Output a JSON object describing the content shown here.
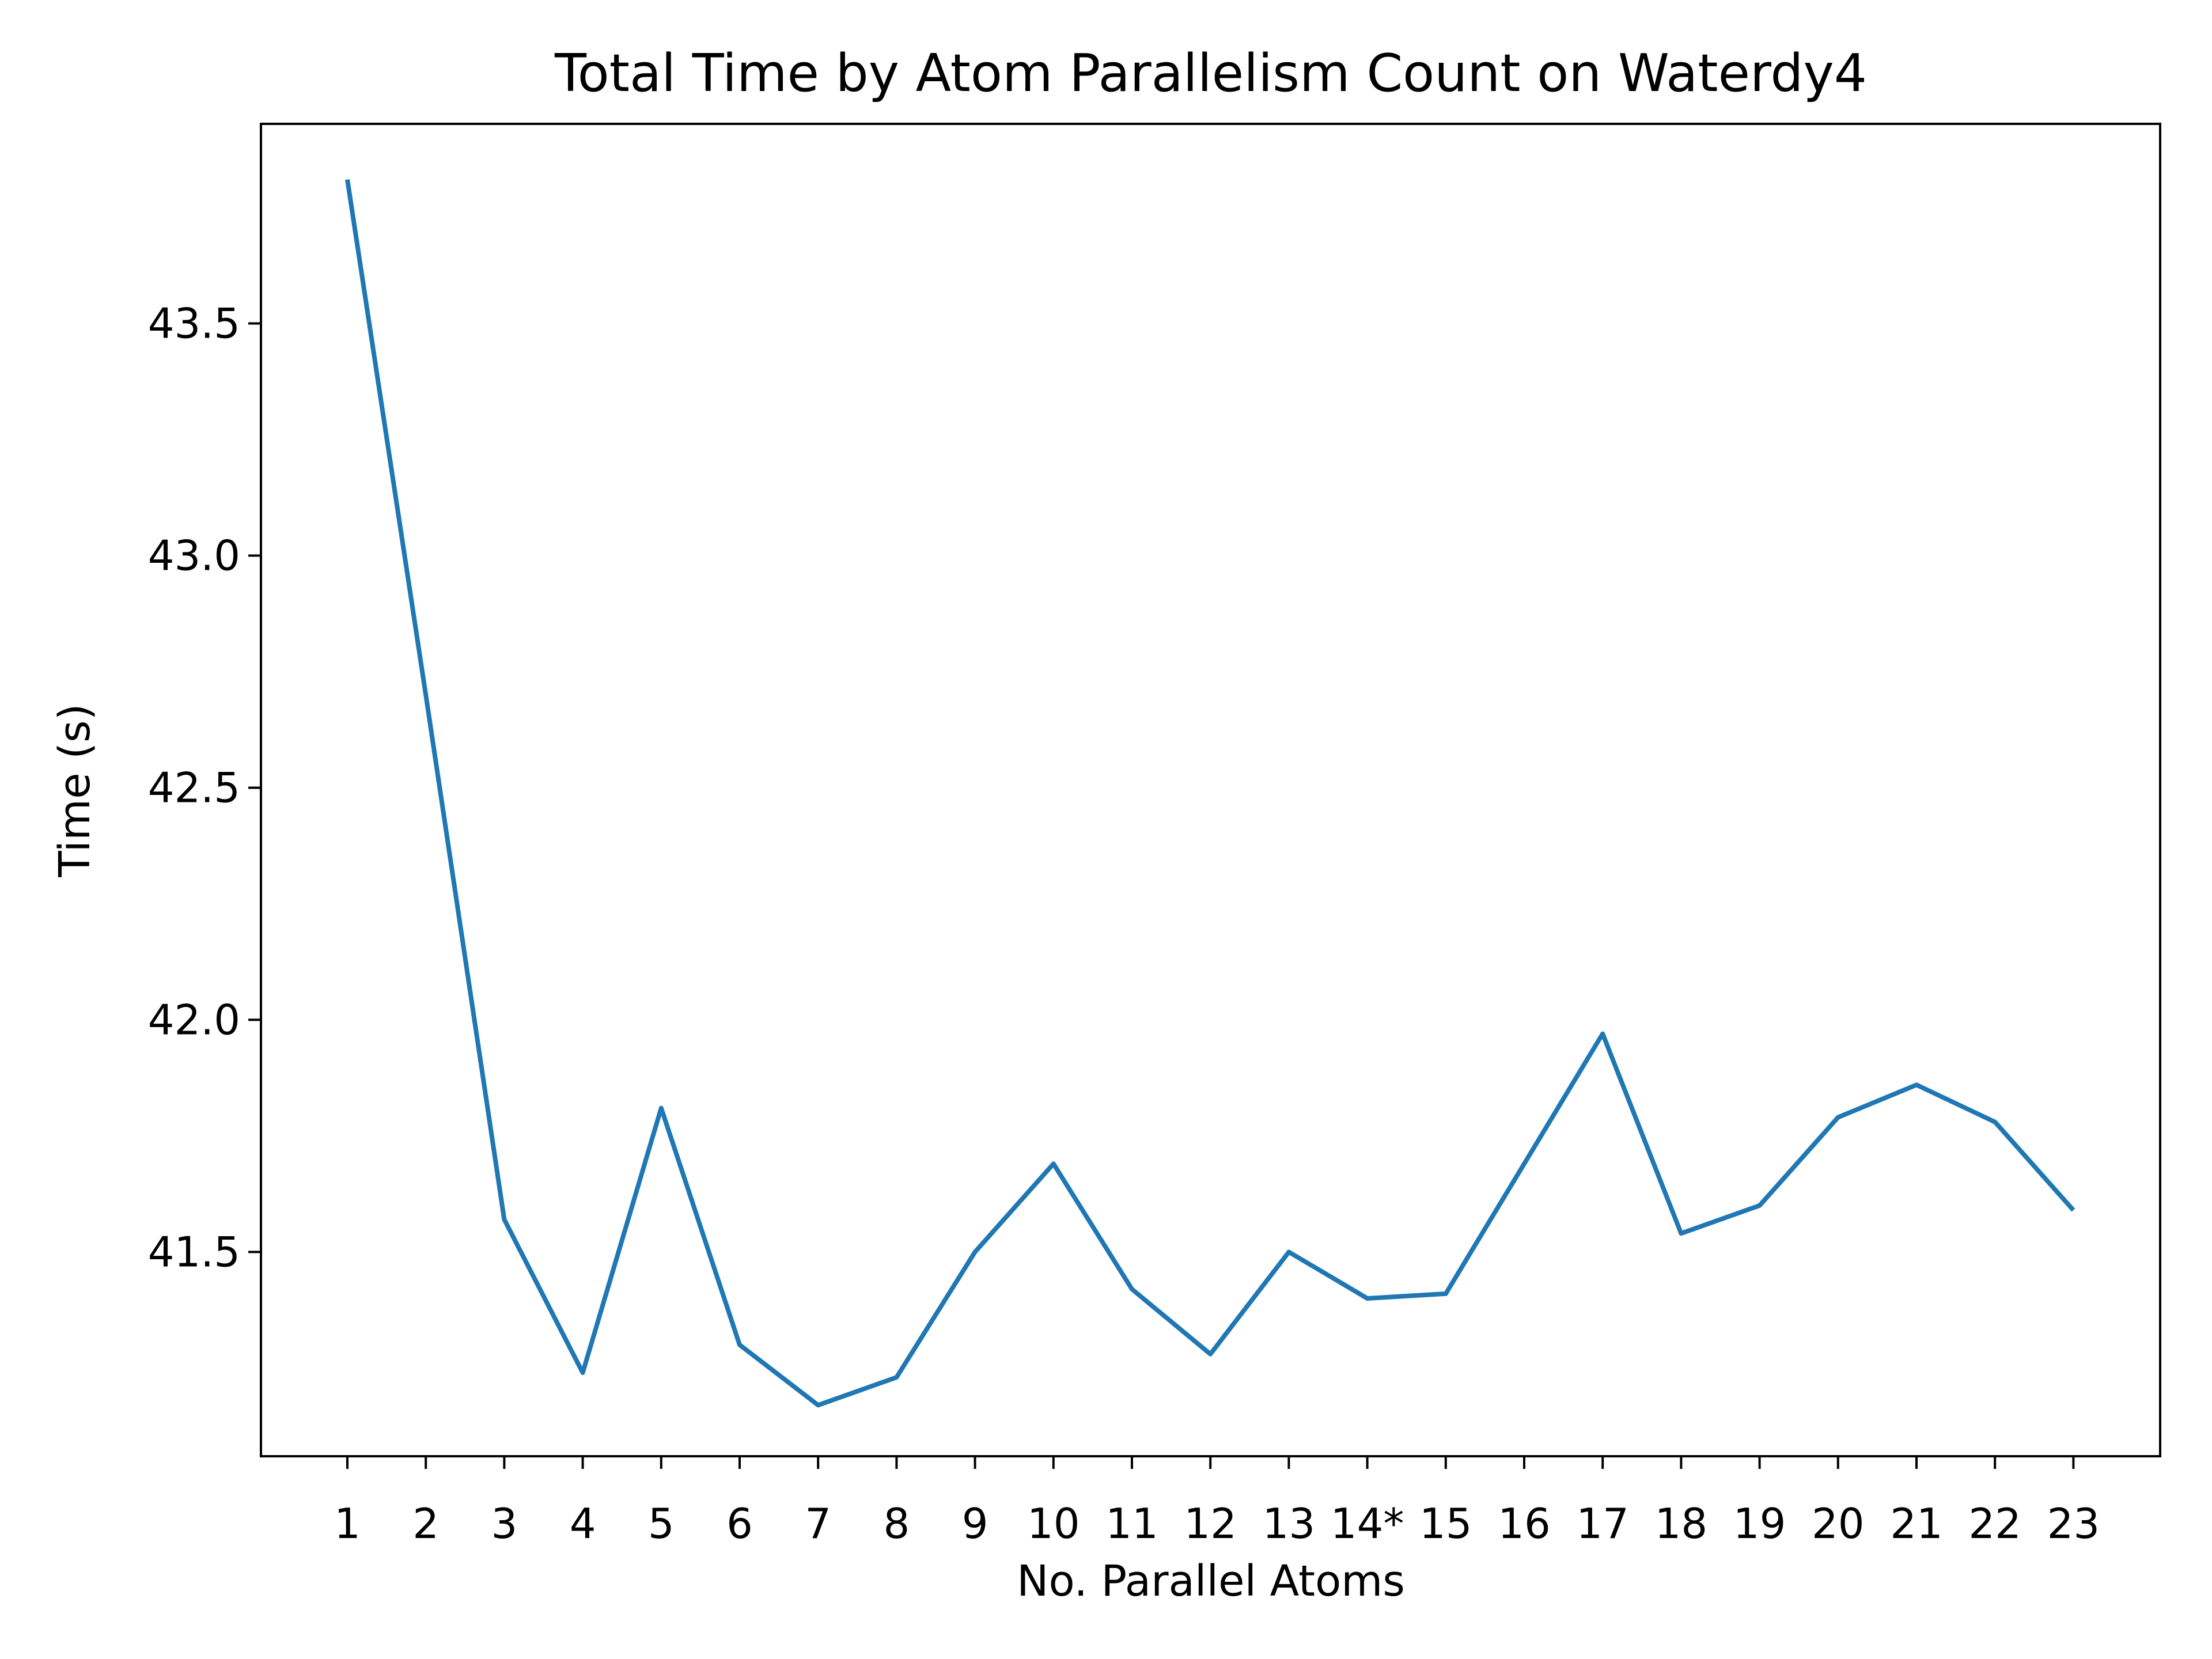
{
  "chart_data": {
    "type": "line",
    "title": "Total Time by Atom Parallelism Count on Waterdy4",
    "xlabel": "No. Parallel Atoms",
    "ylabel": "Time (s)",
    "categories": [
      "1",
      "2",
      "3",
      "4",
      "5",
      "6",
      "7",
      "8",
      "9",
      "10",
      "11",
      "12",
      "13",
      "14*",
      "15",
      "16",
      "17",
      "18",
      "19",
      "20",
      "21",
      "22",
      "23"
    ],
    "y_ticks": [
      41.5,
      42.0,
      42.5,
      43.0,
      43.5
    ],
    "ylim": [
      41.06,
      43.93
    ],
    "series": [
      {
        "color": "#1f77b4",
        "values": [
          43.81,
          42.7,
          41.57,
          41.24,
          41.81,
          41.3,
          41.17,
          41.23,
          41.5,
          41.69,
          41.42,
          41.28,
          41.5,
          41.4,
          41.41,
          41.69,
          41.97,
          41.54,
          41.6,
          41.79,
          41.86,
          41.78,
          41.59
        ]
      }
    ],
    "grid": false,
    "legend": "none"
  }
}
